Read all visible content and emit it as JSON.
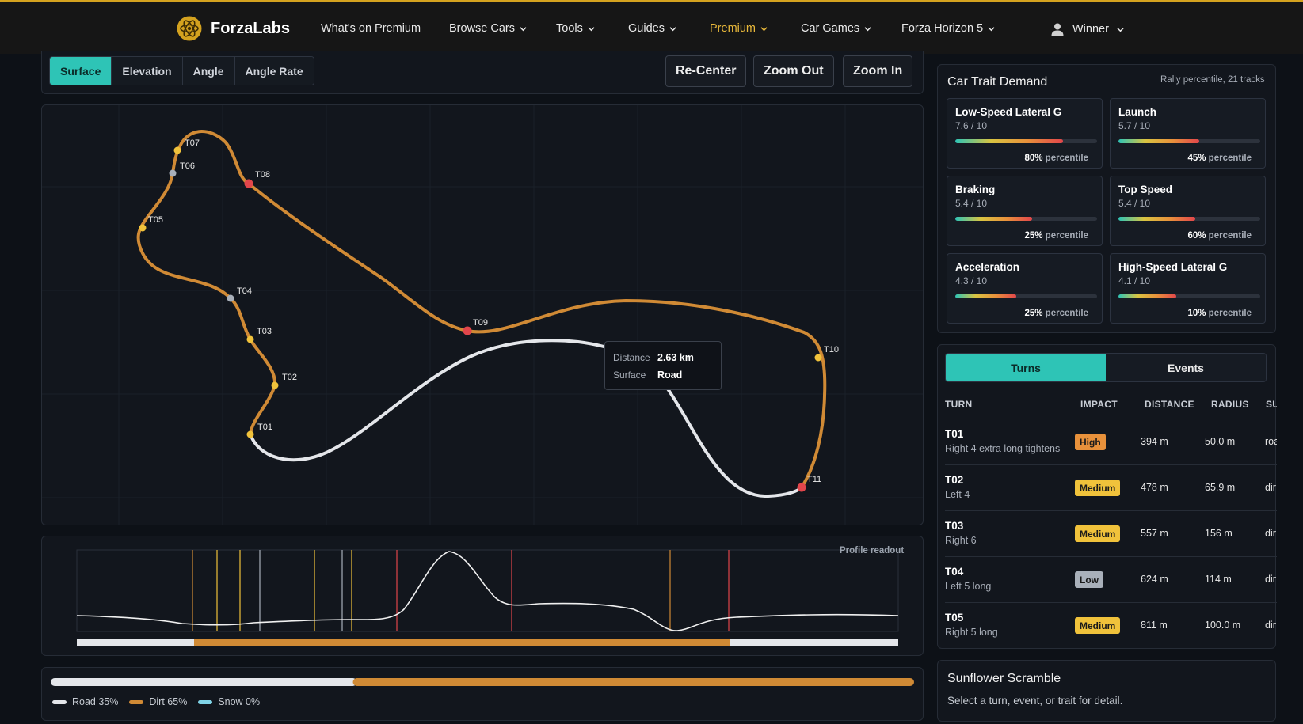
{
  "nav": {
    "brand": "ForzaLabs",
    "items": [
      "What's on Premium",
      "Browse Cars",
      "Tools",
      "Guides",
      "Premium",
      "Car Games",
      "Forza Horizon 5"
    ],
    "user": "Winner"
  },
  "map": {
    "tabs": [
      "Surface",
      "Elevation",
      "Angle",
      "Angle Rate"
    ],
    "active_tab": "Surface",
    "buttons": {
      "recenter": "Re-Center",
      "zoom_out": "Zoom Out",
      "zoom_in": "Zoom In"
    },
    "turn_markers": [
      "T01",
      "T02",
      "T03",
      "T04",
      "T05",
      "T06",
      "T07",
      "T08",
      "T09",
      "T10",
      "T11"
    ],
    "tooltip": {
      "distance_label": "Distance",
      "distance_value": "2.63 km",
      "surface_label": "Surface",
      "surface_value": "Road"
    }
  },
  "profile": {
    "label": "Profile readout"
  },
  "surface_mix": {
    "road_pct": 35,
    "dirt_pct": 65,
    "snow_pct": 0,
    "legend": [
      "Road 35%",
      "Dirt 65%",
      "Snow 0%"
    ],
    "colors": {
      "road": "#e4e6ea",
      "dirt": "#d08a35",
      "snow": "#7fd3e6"
    }
  },
  "traits": {
    "title": "Car Trait Demand",
    "subtitle": "Rally percentile, 21 tracks",
    "percentile_word": "percentile",
    "items": [
      {
        "name": "Low-Speed Lateral G",
        "score": "7.6 / 10",
        "pct": "80%",
        "fill": 0.76
      },
      {
        "name": "Launch",
        "score": "5.7 / 10",
        "pct": "45%",
        "fill": 0.57
      },
      {
        "name": "Braking",
        "score": "5.4 / 10",
        "pct": "25%",
        "fill": 0.54
      },
      {
        "name": "Top Speed",
        "score": "5.4 / 10",
        "pct": "60%",
        "fill": 0.54
      },
      {
        "name": "Acceleration",
        "score": "4.3 / 10",
        "pct": "25%",
        "fill": 0.43
      },
      {
        "name": "High-Speed Lateral G",
        "score": "4.1 / 10",
        "pct": "10%",
        "fill": 0.41
      }
    ]
  },
  "turns_panel": {
    "tabs": [
      "Turns",
      "Events"
    ],
    "active_tab": "Turns",
    "headers": [
      "TURN",
      "IMPACT",
      "DISTANCE",
      "RADIUS",
      "SU"
    ],
    "rows": [
      {
        "turn": "T01",
        "desc": "Right 4 extra long tightens",
        "impact": "High",
        "distance": "394 m",
        "radius": "50.0 m",
        "surface": "roa"
      },
      {
        "turn": "T02",
        "desc": "Left 4",
        "impact": "Medium",
        "distance": "478 m",
        "radius": "65.9 m",
        "surface": "dir"
      },
      {
        "turn": "T03",
        "desc": "Right 6",
        "impact": "Medium",
        "distance": "557 m",
        "radius": "156 m",
        "surface": "dir"
      },
      {
        "turn": "T04",
        "desc": "Left 5 long",
        "impact": "Low",
        "distance": "624 m",
        "radius": "114 m",
        "surface": "dir"
      },
      {
        "turn": "T05",
        "desc": "Right 5 long",
        "impact": "Medium",
        "distance": "811 m",
        "radius": "100.0 m",
        "surface": "dir"
      }
    ]
  },
  "detail": {
    "title": "Sunflower Scramble",
    "hint": "Select a turn, event, or trait for detail."
  }
}
